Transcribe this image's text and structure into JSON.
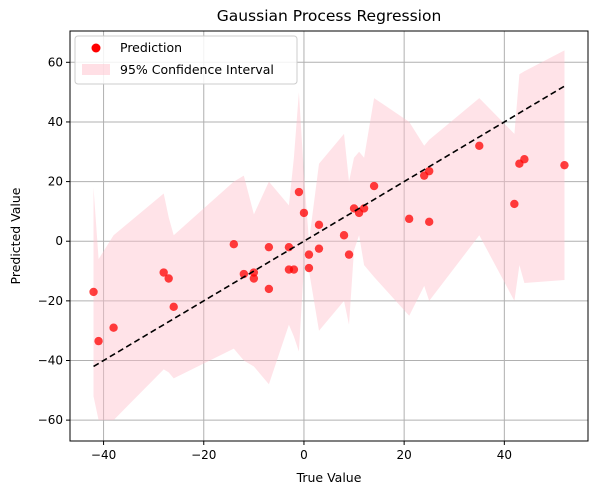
{
  "chart_data": {
    "type": "scatter",
    "title": "Gaussian Process Regression",
    "xlabel": "True Value",
    "ylabel": "Predicted Value",
    "xlim": [
      -46.7,
      56.7
    ],
    "ylim": [
      -67,
      70.5
    ],
    "xticks": [
      -40,
      -20,
      0,
      20,
      40
    ],
    "yticks": [
      -60,
      -40,
      -20,
      0,
      20,
      40,
      60
    ],
    "xtick_labels": [
      "−40",
      "−20",
      "0",
      "20",
      "40"
    ],
    "ytick_labels": [
      "−60",
      "−40",
      "−20",
      "0",
      "20",
      "40",
      "60"
    ],
    "grid": true,
    "legend_position": "top-left",
    "colors": {
      "points": "#ff0000",
      "band": "#ffc0cb",
      "identity_line": "#000000",
      "grid": "#b0b0b0"
    },
    "series": [
      {
        "name": "Prediction",
        "kind": "scatter",
        "points": [
          {
            "x": -42,
            "y": -17
          },
          {
            "x": -41,
            "y": -33.5
          },
          {
            "x": -38,
            "y": -29
          },
          {
            "x": -28,
            "y": -10.5
          },
          {
            "x": -27,
            "y": -12.5
          },
          {
            "x": -26,
            "y": -22
          },
          {
            "x": -14,
            "y": -1
          },
          {
            "x": -12,
            "y": -11
          },
          {
            "x": -10,
            "y": -10.5
          },
          {
            "x": -10,
            "y": -12.5
          },
          {
            "x": -7,
            "y": -2
          },
          {
            "x": -7,
            "y": -16
          },
          {
            "x": -3,
            "y": -2
          },
          {
            "x": -3,
            "y": -9.5
          },
          {
            "x": -2,
            "y": -9.5
          },
          {
            "x": -1,
            "y": 16.5
          },
          {
            "x": 0,
            "y": 9.5
          },
          {
            "x": 1,
            "y": -4.5
          },
          {
            "x": 1,
            "y": -9
          },
          {
            "x": 3,
            "y": 5.5
          },
          {
            "x": 3,
            "y": -2.5
          },
          {
            "x": 8,
            "y": 2
          },
          {
            "x": 9,
            "y": -4.5
          },
          {
            "x": 10,
            "y": 11
          },
          {
            "x": 11,
            "y": 9.5
          },
          {
            "x": 12,
            "y": 11
          },
          {
            "x": 14,
            "y": 18.5
          },
          {
            "x": 21,
            "y": 7.5
          },
          {
            "x": 24,
            "y": 22
          },
          {
            "x": 25,
            "y": 23.5
          },
          {
            "x": 25,
            "y": 6.5
          },
          {
            "x": 35,
            "y": 32
          },
          {
            "x": 42,
            "y": 12.5
          },
          {
            "x": 43,
            "y": 26
          },
          {
            "x": 44,
            "y": 27.5
          },
          {
            "x": 52,
            "y": 25.5
          }
        ]
      },
      {
        "name": "95% Confidence Interval",
        "kind": "band",
        "x": [
          -42,
          -41,
          -38,
          -28,
          -27,
          -26,
          -14,
          -12,
          -10,
          -7,
          -3,
          -2,
          -1,
          0,
          1,
          3,
          8,
          9,
          10,
          11,
          12,
          14,
          21,
          24,
          25,
          35,
          42,
          43,
          44,
          52
        ],
        "upper": [
          18,
          -6,
          2,
          16,
          8,
          2,
          20,
          22,
          9,
          20,
          12,
          28,
          50,
          22,
          0,
          26,
          36,
          20,
          28,
          30,
          28,
          48,
          40,
          32,
          34,
          48,
          36,
          56,
          57,
          64
        ],
        "lower": [
          -52,
          -60,
          -60,
          -43,
          -44,
          -46,
          -36,
          -40,
          -42,
          -48,
          -28,
          -32,
          -37,
          -8,
          -10,
          -30,
          -20,
          -28,
          -3,
          2,
          -8,
          -12,
          -25,
          -15,
          -20,
          2,
          -20,
          -8,
          -14,
          -13
        ]
      },
      {
        "kind": "identity_line",
        "x": [
          -42,
          52
        ],
        "y": [
          -42,
          52
        ]
      }
    ]
  }
}
